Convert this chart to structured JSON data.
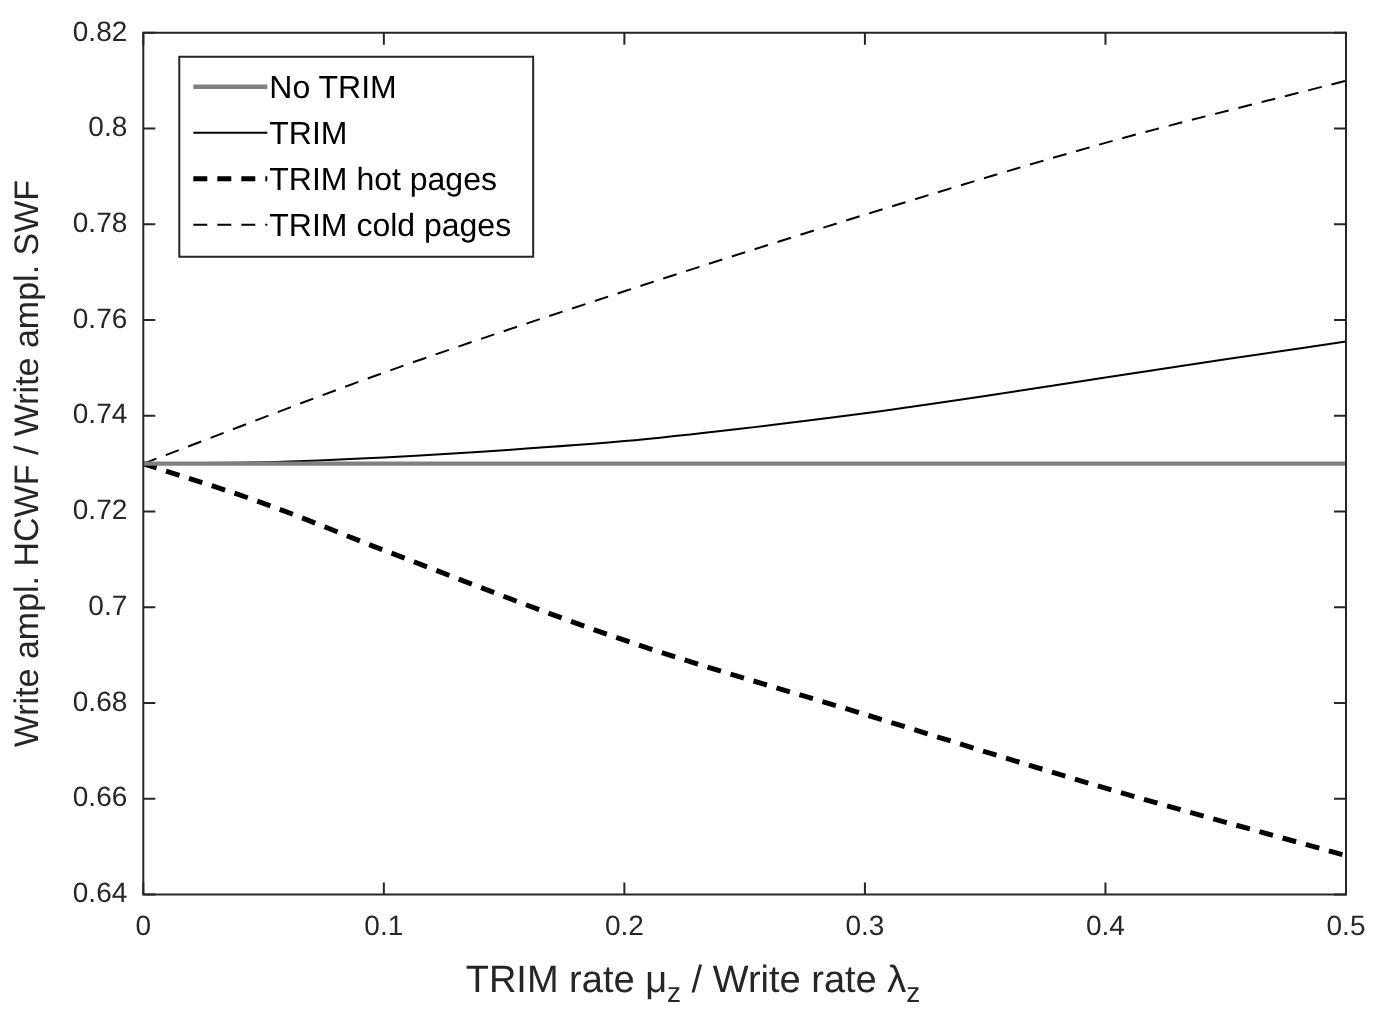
{
  "chart_data": {
    "type": "line",
    "xlabel": "TRIM rate  μ$_{z}$ / Write rate    λ$_{z}$",
    "ylabel": "Write ampl. HCWF / Write ampl. SWF",
    "xlim": [
      0,
      0.5
    ],
    "xticks": [
      0,
      0.1,
      0.2,
      0.3,
      0.4,
      0.5
    ],
    "ylim": [
      0.64,
      0.82
    ],
    "yticks": [
      0.64,
      0.66,
      0.68,
      0.7,
      0.72,
      0.74,
      0.76,
      0.78,
      0.8,
      0.82
    ],
    "grid": false,
    "legend": "top left",
    "marker": "none",
    "series": [
      {
        "name": "No TRIM",
        "color": "#808080",
        "line_style": "solid",
        "x": [
          0,
          0.1,
          0.2,
          0.3,
          0.4,
          0.5
        ],
        "values": [
          0.73,
          0.73,
          0.73,
          0.73,
          0.73,
          0.73
        ]
      },
      {
        "name": "TRIM",
        "color": "#000000",
        "line_style": "solid",
        "x": [
          0,
          0.05,
          0.1,
          0.15,
          0.2,
          0.25,
          0.3,
          0.35,
          0.4,
          0.45,
          0.5
        ],
        "values": [
          0.73,
          0.7303,
          0.7313,
          0.7328,
          0.7347,
          0.7374,
          0.7405,
          0.7441,
          0.748,
          0.7518,
          0.7555
        ]
      },
      {
        "name": "TRIM hot pages",
        "color": "#000000",
        "line_style": "dashed",
        "x": [
          0,
          0.05,
          0.1,
          0.2,
          0.3,
          0.4,
          0.5
        ],
        "values": [
          0.73,
          0.7217,
          0.7119,
          0.6931,
          0.6776,
          0.6622,
          0.6481
        ]
      },
      {
        "name": "TRIM cold pages",
        "color": "#000000",
        "line_style": "dashed",
        "x": [
          0,
          0.1,
          0.2,
          0.3,
          0.4,
          0.5
        ],
        "values": [
          0.73,
          0.749,
          0.766,
          0.782,
          0.797,
          0.81
        ]
      }
    ]
  }
}
